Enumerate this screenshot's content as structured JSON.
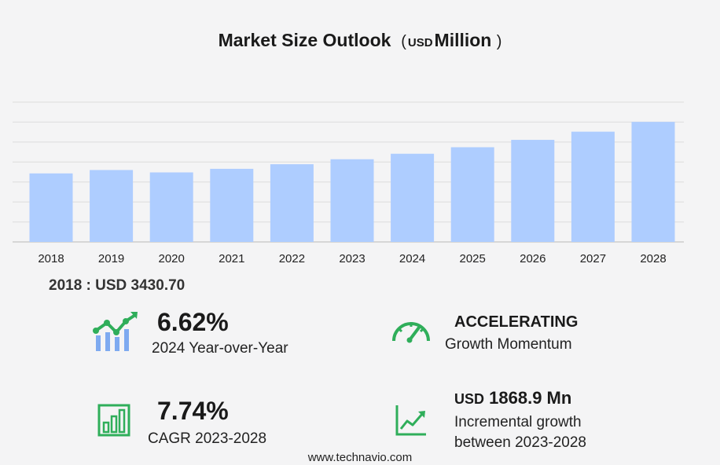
{
  "title": {
    "main": "Market Size Outlook",
    "open_paren": "(",
    "unit": "USD",
    "scale": "Million",
    "close_paren": ")"
  },
  "base_stat": "2018 : USD  3430.70",
  "kpis": {
    "yoy": {
      "value": "6.62%",
      "label": "2024 Year-over-Year",
      "icon": "growth-chart-icon"
    },
    "momentum": {
      "value": "ACCELERATING",
      "label": "Growth Momentum",
      "icon": "speedometer-icon"
    },
    "cagr": {
      "value": "7.74%",
      "label": "CAGR 2023-2028",
      "icon": "bar-chart-icon"
    },
    "incremental": {
      "unit": "USD",
      "value": "1868.9 Mn",
      "label_line1": "Incremental growth",
      "label_line2": "between 2023-2028",
      "icon": "trend-line-icon"
    }
  },
  "footer": "www.technavio.com",
  "colors": {
    "bar": "#aecdff",
    "accent_green": "#2fae5a",
    "accent_blue": "#7eaaf0"
  },
  "chart_data": {
    "type": "bar",
    "categories": [
      "2018",
      "2019",
      "2020",
      "2021",
      "2022",
      "2023",
      "2024",
      "2025",
      "2026",
      "2027",
      "2028"
    ],
    "values": [
      3430.7,
      3600,
      3480,
      3660,
      3890,
      4140,
      4415,
      4740,
      5110,
      5520,
      6010
    ],
    "ylim": [
      0,
      7000
    ],
    "grid": true,
    "y_ticks_visible": false
  }
}
